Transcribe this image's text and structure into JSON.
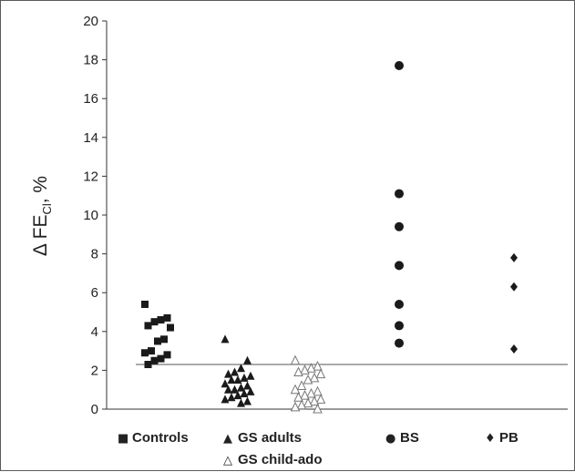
{
  "chart_data": {
    "type": "scatter",
    "title": "",
    "xlabel": "",
    "ylabel": {
      "main": "Δ FE",
      "sub": "Cl",
      "suffix": ", %"
    },
    "ylim": [
      0,
      20
    ],
    "yticks": [
      0,
      2,
      4,
      6,
      8,
      10,
      12,
      14,
      16,
      18,
      20
    ],
    "grid": false,
    "reference_line": 2.3,
    "legend_placement": "bottom",
    "series": [
      {
        "name": "Controls",
        "symbol": "square",
        "symbol_char": "■",
        "color": "#1a1a1a",
        "group": 1,
        "values": [
          5.4,
          4.7,
          4.6,
          4.5,
          4.3,
          4.2,
          3.6,
          3.5,
          3.0,
          2.9,
          2.8,
          2.6,
          2.5,
          2.3
        ]
      },
      {
        "name": "GS adults",
        "symbol": "triangle-filled",
        "symbol_char": "▲",
        "color": "#1a1a1a",
        "group": 2,
        "values": [
          3.6,
          2.5,
          2.1,
          1.9,
          1.8,
          1.7,
          1.6,
          1.5,
          1.5,
          1.3,
          1.2,
          1.1,
          1.0,
          1.0,
          0.9,
          0.8,
          0.7,
          0.6,
          0.5,
          0.4,
          0.3
        ]
      },
      {
        "name": "GS child-ado",
        "symbol": "triangle-open",
        "symbol_char": "△",
        "color": "#1a1a1a",
        "group": 3,
        "values": [
          2.5,
          2.2,
          2.1,
          2.0,
          1.9,
          1.8,
          1.6,
          1.5,
          1.2,
          1.0,
          0.9,
          0.8,
          0.7,
          0.6,
          0.5,
          0.4,
          0.3,
          0.2,
          0.1,
          0.0
        ]
      },
      {
        "name": "BS",
        "symbol": "circle",
        "symbol_char": "●",
        "color": "#1a1a1a",
        "group": 4,
        "values": [
          17.7,
          11.1,
          9.4,
          7.4,
          5.4,
          4.3,
          3.4
        ]
      },
      {
        "name": "PB",
        "symbol": "diamond",
        "symbol_char": "♦",
        "color": "#1a1a1a",
        "group": 5,
        "values": [
          7.8,
          6.3,
          3.1
        ]
      }
    ]
  }
}
